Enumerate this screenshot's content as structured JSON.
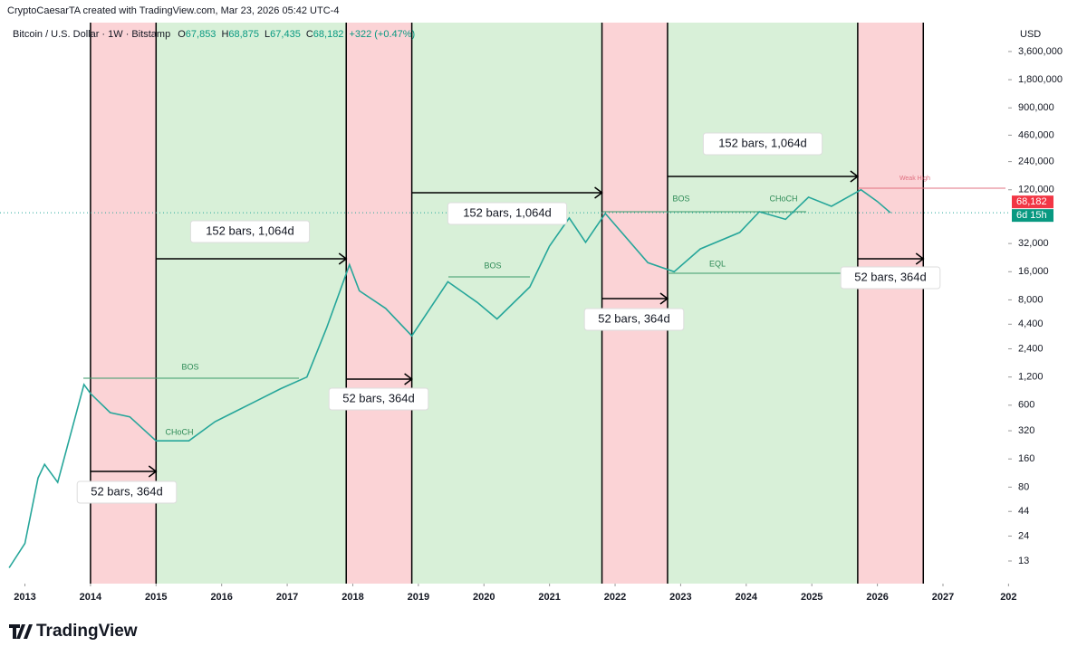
{
  "header": {
    "credit": "CryptoCaesarTA created with TradingView.com, Mar 23, 2026 05:42 UTC-4",
    "symbol": "Bitcoin / U.S. Dollar · 1W · Bitstamp",
    "ohlc": [
      {
        "label": "O",
        "value": "67,853"
      },
      {
        "label": "H",
        "value": "68,875"
      },
      {
        "label": "L",
        "value": "67,435"
      },
      {
        "label": "C",
        "value": "68,182"
      }
    ],
    "change": "+322 (+0.47%)",
    "currency": "USD",
    "logo": "TradingView"
  },
  "chart_data": {
    "type": "line",
    "log_scale": true,
    "x": [
      2012.76,
      2013.0,
      2013.2,
      2013.3,
      2013.5,
      2013.9,
      2014.0,
      2014.3,
      2014.6,
      2015.0,
      2015.5,
      2015.9,
      2016.5,
      2016.9,
      2017.3,
      2017.6,
      2017.95,
      2018.1,
      2018.5,
      2018.9,
      2019.45,
      2019.9,
      2020.2,
      2020.7,
      2021.0,
      2021.3,
      2021.55,
      2021.85,
      2022.5,
      2022.9,
      2023.3,
      2023.9,
      2024.2,
      2024.6,
      2024.95,
      2025.3,
      2025.75,
      2026.0,
      2026.2
    ],
    "series": [
      {
        "name": "Bitcoin / U.S. Dollar",
        "color": "#26a69a",
        "values": [
          11,
          20,
          100,
          140,
          90,
          1000,
          800,
          500,
          450,
          250,
          250,
          400,
          650,
          900,
          1200,
          4000,
          19000,
          10000,
          6500,
          3300,
          12500,
          7500,
          5000,
          11000,
          30000,
          60000,
          33000,
          67000,
          20000,
          16000,
          28000,
          42000,
          70000,
          58000,
          100000,
          80000,
          120000,
          90000,
          68182
        ]
      }
    ],
    "last_price": {
      "value": 68182,
      "label": "68,182"
    },
    "countdown": "6d 15h",
    "xlim": [
      2012.62,
      2028.05
    ],
    "xticks": [
      2013,
      2014,
      2015,
      2016,
      2017,
      2018,
      2019,
      2020,
      2021,
      2022,
      2023,
      2024,
      2025,
      2026,
      2027,
      {
        "value": 2028,
        "label": "202"
      }
    ],
    "ylim": [
      11,
      4200000
    ],
    "yticks": [
      13,
      24,
      44,
      80,
      160,
      320,
      600,
      {
        "value": 1200,
        "label": "1,200"
      },
      {
        "value": 2400,
        "label": "2,400"
      },
      {
        "value": 4400,
        "label": "4,400"
      },
      {
        "value": 8000,
        "label": "8,000"
      },
      {
        "value": 16000,
        "label": "16,000"
      },
      {
        "value": 32000,
        "label": "32,000"
      },
      {
        "value": 120000,
        "label": "120,000"
      },
      {
        "value": 240000,
        "label": "240,000"
      },
      {
        "value": 460000,
        "label": "460,000"
      },
      {
        "value": 900000,
        "label": "900,000"
      },
      {
        "value": 1800000,
        "label": "1,800,000"
      },
      {
        "value": 3600000,
        "label": "3,600,000"
      }
    ],
    "zones": [
      {
        "start": 2014.0,
        "end": 2015.0,
        "color": "#fbd3d6"
      },
      {
        "start": 2015.0,
        "end": 2017.9,
        "color": "#d8f0d8"
      },
      {
        "start": 2017.9,
        "end": 2018.9,
        "color": "#fbd3d6"
      },
      {
        "start": 2018.9,
        "end": 2021.8,
        "color": "#d8f0d8"
      },
      {
        "start": 2021.8,
        "end": 2022.8,
        "color": "#fbd3d6"
      },
      {
        "start": 2022.8,
        "end": 2025.7,
        "color": "#d8f0d8"
      },
      {
        "start": 2025.7,
        "end": 2026.7,
        "color": "#fbd3d6"
      }
    ],
    "annotations": [
      "52 bars, 364d",
      "152 bars, 1,064d",
      "52 bars, 364d",
      "152 bars, 1,064d",
      "52 bars, 364d",
      "152 bars, 1,064d",
      "52 bars, 364d"
    ],
    "labels": [
      "BOS",
      "BOS",
      "BOS",
      "EQL",
      "Weak High",
      "CHoCH",
      "CHoCH"
    ]
  }
}
